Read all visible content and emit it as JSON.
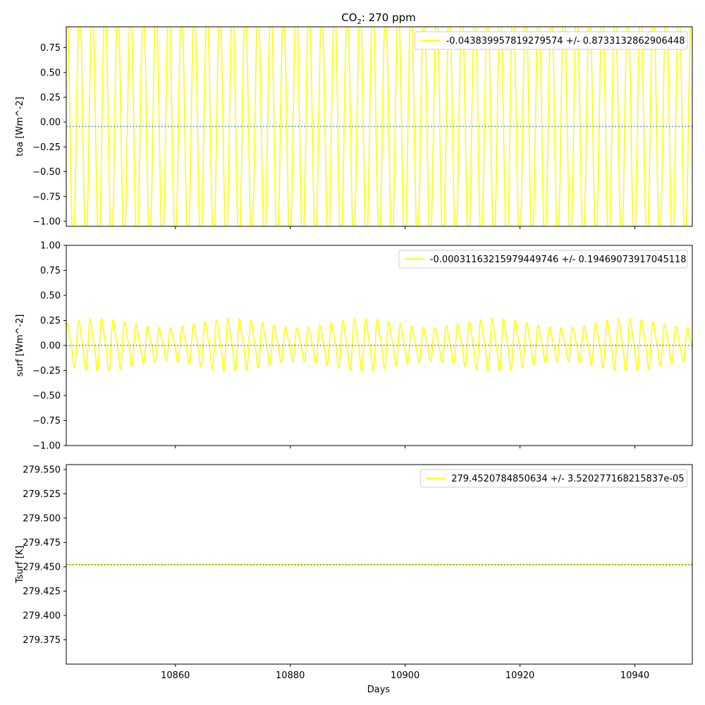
{
  "title_main": "CO",
  "title_sub": "2",
  "title_tail": ": 270 ppm",
  "xlabel": "Days",
  "colors": {
    "series": "#ffff00",
    "mean_line": "#1f77b4",
    "frame": "#000000"
  },
  "chart_data": [
    {
      "type": "line",
      "ylabel": "toa [Wm^-2]",
      "legend": "-0.043839957819279574 +/- 0.8733132862906448",
      "legend_position": "top-right",
      "xlim": [
        10841,
        10950
      ],
      "ylim": [
        -1.05,
        0.96
      ],
      "yticks": [
        -1.0,
        -0.75,
        -0.5,
        -0.25,
        0.0,
        0.25,
        0.5,
        0.75
      ],
      "ytick_labels": [
        "−1.00",
        "−0.75",
        "−0.50",
        "−0.25",
        "0.00",
        "0.25",
        "0.50",
        "0.75"
      ],
      "xticks": [
        10860,
        10880,
        10900,
        10920,
        10940
      ],
      "mean": -0.043839957819279574,
      "series_model": {
        "kind": "sine",
        "mean": -0.0438,
        "amplitude": 1.24,
        "period_days": 2.22,
        "samples": 2400
      }
    },
    {
      "type": "line",
      "ylabel": "surf [Wm^-2]",
      "legend": "-0.00031163215979449746 +/- 0.19469073917045118",
      "legend_position": "top-right",
      "xlim": [
        10841,
        10950
      ],
      "ylim": [
        -1.0,
        1.0
      ],
      "yticks": [
        -1.0,
        -0.75,
        -0.5,
        -0.25,
        0.0,
        0.25,
        0.5,
        0.75,
        1.0
      ],
      "ytick_labels": [
        "−1.00",
        "−0.75",
        "−0.50",
        "−0.25",
        "0.00",
        "0.25",
        "0.50",
        "0.75",
        "1.00"
      ],
      "xticks": [
        10860,
        10880,
        10900,
        10920,
        10940
      ],
      "mean": -0.00031163215979449746,
      "series_model": {
        "kind": "daily-cycle",
        "mean": 0.0,
        "amplitude": 0.3,
        "period_days": 2.0,
        "samples": 2400
      }
    },
    {
      "type": "line",
      "ylabel": "Tsurf [K]",
      "legend": "279.4520784850634 +/- 3.520277168215837e-05",
      "legend_position": "top-right",
      "xlim": [
        10841,
        10950
      ],
      "ylim": [
        279.35,
        279.555
      ],
      "yticks": [
        279.375,
        279.4,
        279.425,
        279.45,
        279.475,
        279.5,
        279.525,
        279.55
      ],
      "ytick_labels": [
        "279.375",
        "279.400",
        "279.425",
        "279.450",
        "279.475",
        "279.500",
        "279.525",
        "279.550"
      ],
      "xticks": [
        10860,
        10880,
        10900,
        10920,
        10940
      ],
      "xtick_labels": [
        "10860",
        "10880",
        "10900",
        "10920",
        "10940"
      ],
      "mean": 279.4520784850634,
      "series_model": {
        "kind": "flat",
        "mean": 279.4520784850634,
        "amplitude": 0.0,
        "period_days": 1.0,
        "samples": 2
      }
    }
  ]
}
